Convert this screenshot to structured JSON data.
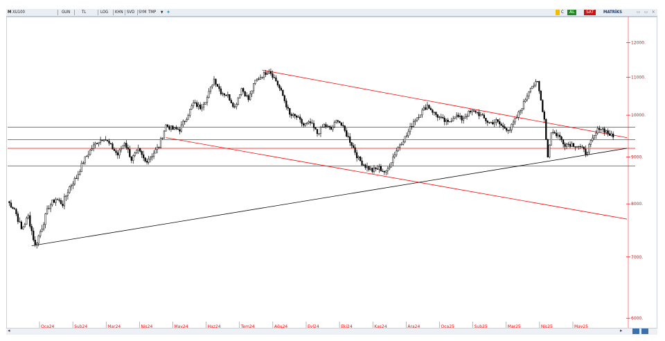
{
  "toolbar": {
    "symbol_prefix": "M",
    "symbol": "XU100",
    "period": "GUN",
    "currency": "TL",
    "buttons": [
      "LOG",
      "KHN",
      "SVD",
      "SYM",
      "TMP"
    ],
    "color_box": "C",
    "buy": "AL",
    "sell": "SAT",
    "brand": "MATRİKS"
  },
  "colors": {
    "price": "#000000",
    "resistance": "#ff0000",
    "support_trend": "#000000",
    "green_line": "#00c000",
    "axis_text": "#ff0000",
    "toolbar_bg": "#e9eef4",
    "buy_bg": "#1c8a1c",
    "sell_bg": "#cc1111"
  },
  "chart_data": {
    "type": "ohlc-candlestick",
    "symbol": "XU100",
    "timeframe": "daily",
    "xlabel_ticks": [
      "Oca24",
      "Şub24",
      "Mar24",
      "Nis24",
      "May24",
      "Haz24",
      "Tem24",
      "Ağu24",
      "Eyl24",
      "Eki24",
      "Kas24",
      "Ara24",
      "Oca25",
      "Şub25",
      "Mar25",
      "Nis25",
      "May25"
    ],
    "ytick_labels": [
      "12000.",
      "11000.",
      "10000.",
      "9000.",
      "8000.",
      "7000.",
      "6000."
    ],
    "y_ticks": [
      12000,
      11000,
      10000,
      9000,
      8000,
      7000,
      6000
    ],
    "ylim": [
      5950,
      12700
    ],
    "y_scale": "log",
    "close_path": [
      [
        0,
        8050
      ],
      [
        4,
        7900
      ],
      [
        8,
        7500
      ],
      [
        12,
        7750
      ],
      [
        16,
        7200
      ],
      [
        20,
        7550
      ],
      [
        24,
        7950
      ],
      [
        28,
        8100
      ],
      [
        32,
        8000
      ],
      [
        36,
        8350
      ],
      [
        40,
        8550
      ],
      [
        44,
        8900
      ],
      [
        48,
        9150
      ],
      [
        52,
        9350
      ],
      [
        56,
        9450
      ],
      [
        60,
        9250
      ],
      [
        64,
        9050
      ],
      [
        68,
        9350
      ],
      [
        72,
        8950
      ],
      [
        76,
        9150
      ],
      [
        80,
        8900
      ],
      [
        84,
        9050
      ],
      [
        88,
        9250
      ],
      [
        92,
        9750
      ],
      [
        96,
        9650
      ],
      [
        100,
        9650
      ],
      [
        104,
        9950
      ],
      [
        108,
        10300
      ],
      [
        112,
        10200
      ],
      [
        116,
        10450
      ],
      [
        120,
        10950
      ],
      [
        124,
        10600
      ],
      [
        128,
        10500
      ],
      [
        132,
        10200
      ],
      [
        136,
        10700
      ],
      [
        140,
        10400
      ],
      [
        144,
        10900
      ],
      [
        148,
        11050
      ],
      [
        152,
        11200
      ],
      [
        156,
        10900
      ],
      [
        160,
        10500
      ],
      [
        164,
        10000
      ],
      [
        168,
        9950
      ],
      [
        172,
        9750
      ],
      [
        176,
        9800
      ],
      [
        180,
        9550
      ],
      [
        184,
        9750
      ],
      [
        188,
        9650
      ],
      [
        192,
        9900
      ],
      [
        196,
        9600
      ],
      [
        200,
        9300
      ],
      [
        204,
        8950
      ],
      [
        208,
        8800
      ],
      [
        212,
        8700
      ],
      [
        216,
        8750
      ],
      [
        220,
        8650
      ],
      [
        224,
        9000
      ],
      [
        228,
        9300
      ],
      [
        232,
        9500
      ],
      [
        236,
        9850
      ],
      [
        240,
        10050
      ],
      [
        244,
        10250
      ],
      [
        248,
        10050
      ],
      [
        252,
        9900
      ],
      [
        256,
        9800
      ],
      [
        260,
        10000
      ],
      [
        264,
        9900
      ],
      [
        268,
        10050
      ],
      [
        272,
        10100
      ],
      [
        276,
        9950
      ],
      [
        280,
        9800
      ],
      [
        284,
        9850
      ],
      [
        288,
        9700
      ],
      [
        292,
        9650
      ],
      [
        296,
        9950
      ],
      [
        300,
        10300
      ],
      [
        304,
        10750
      ],
      [
        308,
        10850
      ],
      [
        312,
        9900
      ],
      [
        314,
        9000
      ],
      [
        316,
        9600
      ],
      [
        320,
        9500
      ],
      [
        324,
        9300
      ],
      [
        328,
        9300
      ],
      [
        332,
        9250
      ],
      [
        336,
        9100
      ],
      [
        340,
        9400
      ],
      [
        344,
        9700
      ],
      [
        348,
        9600
      ],
      [
        352,
        9450
      ]
    ],
    "total_bars": 352,
    "horizontal_levels": [
      9700,
      9400,
      9200,
      8800
    ],
    "trendlines": [
      {
        "color": "red",
        "from": [
          148,
          11200
        ],
        "to": [
          360,
          9450
        ]
      },
      {
        "color": "red",
        "from": [
          92,
          9450
        ],
        "to": [
          360,
          7700
        ]
      },
      {
        "color": "black",
        "from": [
          14,
          7200
        ],
        "to": [
          360,
          9200
        ]
      },
      {
        "color": "green",
        "from": [
          348,
          9400
        ],
        "to": [
          360,
          9400
        ]
      }
    ],
    "x_end": 360
  }
}
